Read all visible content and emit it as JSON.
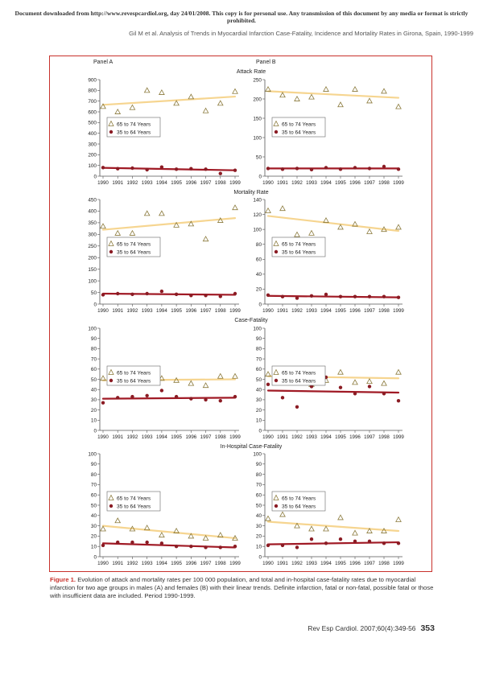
{
  "notice": "Document downloaded from http://www.revespcardiol.org, day 24/01/2008. This copy is for personal use. Any transmission of this document by any media or format is strictly prohibited.",
  "running_head": "Gil M et al. Analysis of Trends in Myocardial Infarction Case-Fatality, Incidence and Mortality Rates in Girona, Spain, 1990-1999",
  "panel_labels": [
    "Panel A",
    "Panel B"
  ],
  "row_titles": [
    "Attack Rate",
    "Mortality Rate",
    "Case-Fatality",
    "In-Hospital Case-Fatality"
  ],
  "legend": [
    "65 to 74 Years",
    "35 to 64 Years"
  ],
  "colors": {
    "frame": "#c8312b",
    "old_marker": "#8b7a3c",
    "old_trend": "#f6d590",
    "young_marker": "#8b1c24",
    "young_trend": "#a01a25",
    "axis": "#555555"
  },
  "caption": {
    "label": "Figure 1.",
    "text": "Evolution of attack and mortality rates per 100 000 population, and total and in-hospital case-fatality rates due to myocardial infarction for two age groups in males (A) and females (B) with their linear trends. Definite infarction, fatal or non-fatal, possible fatal or those with insufficient data are included. Period 1990-1999."
  },
  "footer": {
    "citation": "Rev Esp Cardiol. 2007;60(4):349-56",
    "page": "353"
  },
  "chart_data": [
    {
      "type": "scatter",
      "panel": "Panel A",
      "row": "Attack Rate",
      "ylim": [
        0,
        900
      ],
      "yticks": [
        0,
        100,
        200,
        300,
        400,
        500,
        600,
        700,
        800,
        900
      ],
      "x": [
        1990,
        1991,
        1992,
        1993,
        1994,
        1995,
        1996,
        1997,
        1998,
        1999
      ],
      "series": [
        {
          "name": "65 to 74 Years",
          "values": [
            650,
            600,
            640,
            800,
            780,
            680,
            740,
            610,
            680,
            790
          ],
          "trend": [
            665,
            742
          ]
        },
        {
          "name": "35 to 64 Years",
          "values": [
            80,
            70,
            75,
            60,
            85,
            65,
            70,
            65,
            25,
            55
          ],
          "trend": [
            78,
            55
          ]
        }
      ]
    },
    {
      "type": "scatter",
      "panel": "Panel B",
      "row": "Attack Rate",
      "ylim": [
        0,
        250
      ],
      "yticks": [
        0,
        50,
        100,
        150,
        200,
        250
      ],
      "x": [
        1990,
        1991,
        1992,
        1993,
        1994,
        1995,
        1996,
        1997,
        1998,
        1999
      ],
      "series": [
        {
          "name": "65 to 74 Years",
          "values": [
            225,
            210,
            200,
            205,
            225,
            185,
            225,
            195,
            220,
            180
          ],
          "trend": [
            220,
            203
          ]
        },
        {
          "name": "35 to 64 Years",
          "values": [
            20,
            18,
            20,
            17,
            22,
            18,
            22,
            20,
            25,
            18
          ],
          "trend": [
            20,
            20
          ]
        }
      ]
    },
    {
      "type": "scatter",
      "panel": "Panel A",
      "row": "Mortality Rate",
      "ylim": [
        0,
        450
      ],
      "yticks": [
        0,
        50,
        100,
        150,
        200,
        250,
        300,
        350,
        400,
        450
      ],
      "x": [
        1990,
        1991,
        1992,
        1993,
        1994,
        1995,
        1996,
        1997,
        1998,
        1999
      ],
      "series": [
        {
          "name": "65 to 74 Years",
          "values": [
            335,
            305,
            305,
            390,
            390,
            340,
            345,
            280,
            360,
            415
          ],
          "trend": [
            320,
            370
          ]
        },
        {
          "name": "35 to 64 Years",
          "values": [
            40,
            45,
            42,
            45,
            55,
            42,
            37,
            37,
            33,
            45
          ],
          "trend": [
            45,
            40
          ]
        }
      ]
    },
    {
      "type": "scatter",
      "panel": "Panel B",
      "row": "Mortality Rate",
      "ylim": [
        0,
        140
      ],
      "yticks": [
        0,
        20,
        40,
        60,
        80,
        100,
        120,
        140
      ],
      "x": [
        1990,
        1991,
        1992,
        1993,
        1994,
        1995,
        1996,
        1997,
        1998,
        1999
      ],
      "series": [
        {
          "name": "65 to 74 Years",
          "values": [
            125,
            128,
            93,
            95,
            112,
            103,
            107,
            97,
            100,
            103
          ],
          "trend": [
            118,
            98
          ]
        },
        {
          "name": "35 to 64 Years",
          "values": [
            12,
            10,
            8,
            11,
            13,
            10,
            10,
            10,
            10,
            9
          ],
          "trend": [
            11,
            9
          ]
        }
      ]
    },
    {
      "type": "scatter",
      "panel": "Panel A",
      "row": "Case-Fatality",
      "ylim": [
        0,
        100
      ],
      "yticks": [
        0,
        10,
        20,
        30,
        40,
        50,
        60,
        70,
        80,
        90,
        100
      ],
      "x": [
        1990,
        1991,
        1992,
        1993,
        1994,
        1995,
        1996,
        1997,
        1998,
        1999
      ],
      "series": [
        {
          "name": "65 to 74 Years",
          "values": [
            51,
            51,
            48,
            49,
            51,
            49,
            46,
            44,
            53,
            53
          ],
          "trend": [
            49,
            50
          ]
        },
        {
          "name": "35 to 64 Years",
          "values": [
            27,
            32,
            33,
            34,
            39,
            33,
            31,
            30,
            29,
            33
          ],
          "trend": [
            31,
            32
          ]
        }
      ]
    },
    {
      "type": "scatter",
      "panel": "Panel B",
      "row": "Case-Fatality",
      "ylim": [
        0,
        100
      ],
      "yticks": [
        0,
        10,
        20,
        30,
        40,
        50,
        60,
        70,
        80,
        90,
        100
      ],
      "x": [
        1990,
        1991,
        1992,
        1993,
        1994,
        1995,
        1996,
        1997,
        1998,
        1999
      ],
      "series": [
        {
          "name": "65 to 74 Years",
          "values": [
            55,
            60,
            47,
            45,
            49,
            57,
            47,
            48,
            46,
            57
          ],
          "trend": [
            53,
            51
          ]
        },
        {
          "name": "35 to 64 Years",
          "values": [
            45,
            32,
            23,
            43,
            52,
            42,
            36,
            43,
            36,
            29
          ],
          "trend": [
            39,
            37
          ]
        }
      ]
    },
    {
      "type": "scatter",
      "panel": "Panel A",
      "row": "In-Hospital Case-Fatality",
      "ylim": [
        0,
        100
      ],
      "yticks": [
        0,
        10,
        20,
        30,
        40,
        50,
        60,
        70,
        80,
        90,
        100
      ],
      "x": [
        1990,
        1991,
        1992,
        1993,
        1994,
        1995,
        1996,
        1997,
        1998,
        1999
      ],
      "series": [
        {
          "name": "65 to 74 Years",
          "values": [
            27,
            35,
            27,
            28,
            21,
            25,
            20,
            18,
            21,
            18
          ],
          "trend": [
            30,
            18
          ]
        },
        {
          "name": "35 to 64 Years",
          "values": [
            11,
            14,
            14,
            14,
            13,
            10,
            10,
            9,
            9,
            10
          ],
          "trend": [
            13,
            9
          ]
        }
      ]
    },
    {
      "type": "scatter",
      "panel": "Panel B",
      "row": "In-Hospital Case-Fatality",
      "ylim": [
        0,
        100
      ],
      "yticks": [
        0,
        10,
        20,
        30,
        40,
        50,
        60,
        70,
        80,
        90,
        100
      ],
      "x": [
        1990,
        1991,
        1992,
        1993,
        1994,
        1995,
        1996,
        1997,
        1998,
        1999
      ],
      "series": [
        {
          "name": "65 to 74 Years",
          "values": [
            37,
            41,
            30,
            27,
            27,
            38,
            23,
            25,
            25,
            36
          ],
          "trend": [
            34,
            25
          ]
        },
        {
          "name": "35 to 64 Years",
          "values": [
            11,
            11,
            9,
            17,
            13,
            17,
            15,
            15,
            13,
            13
          ],
          "trend": [
            12,
            14
          ]
        }
      ]
    }
  ]
}
